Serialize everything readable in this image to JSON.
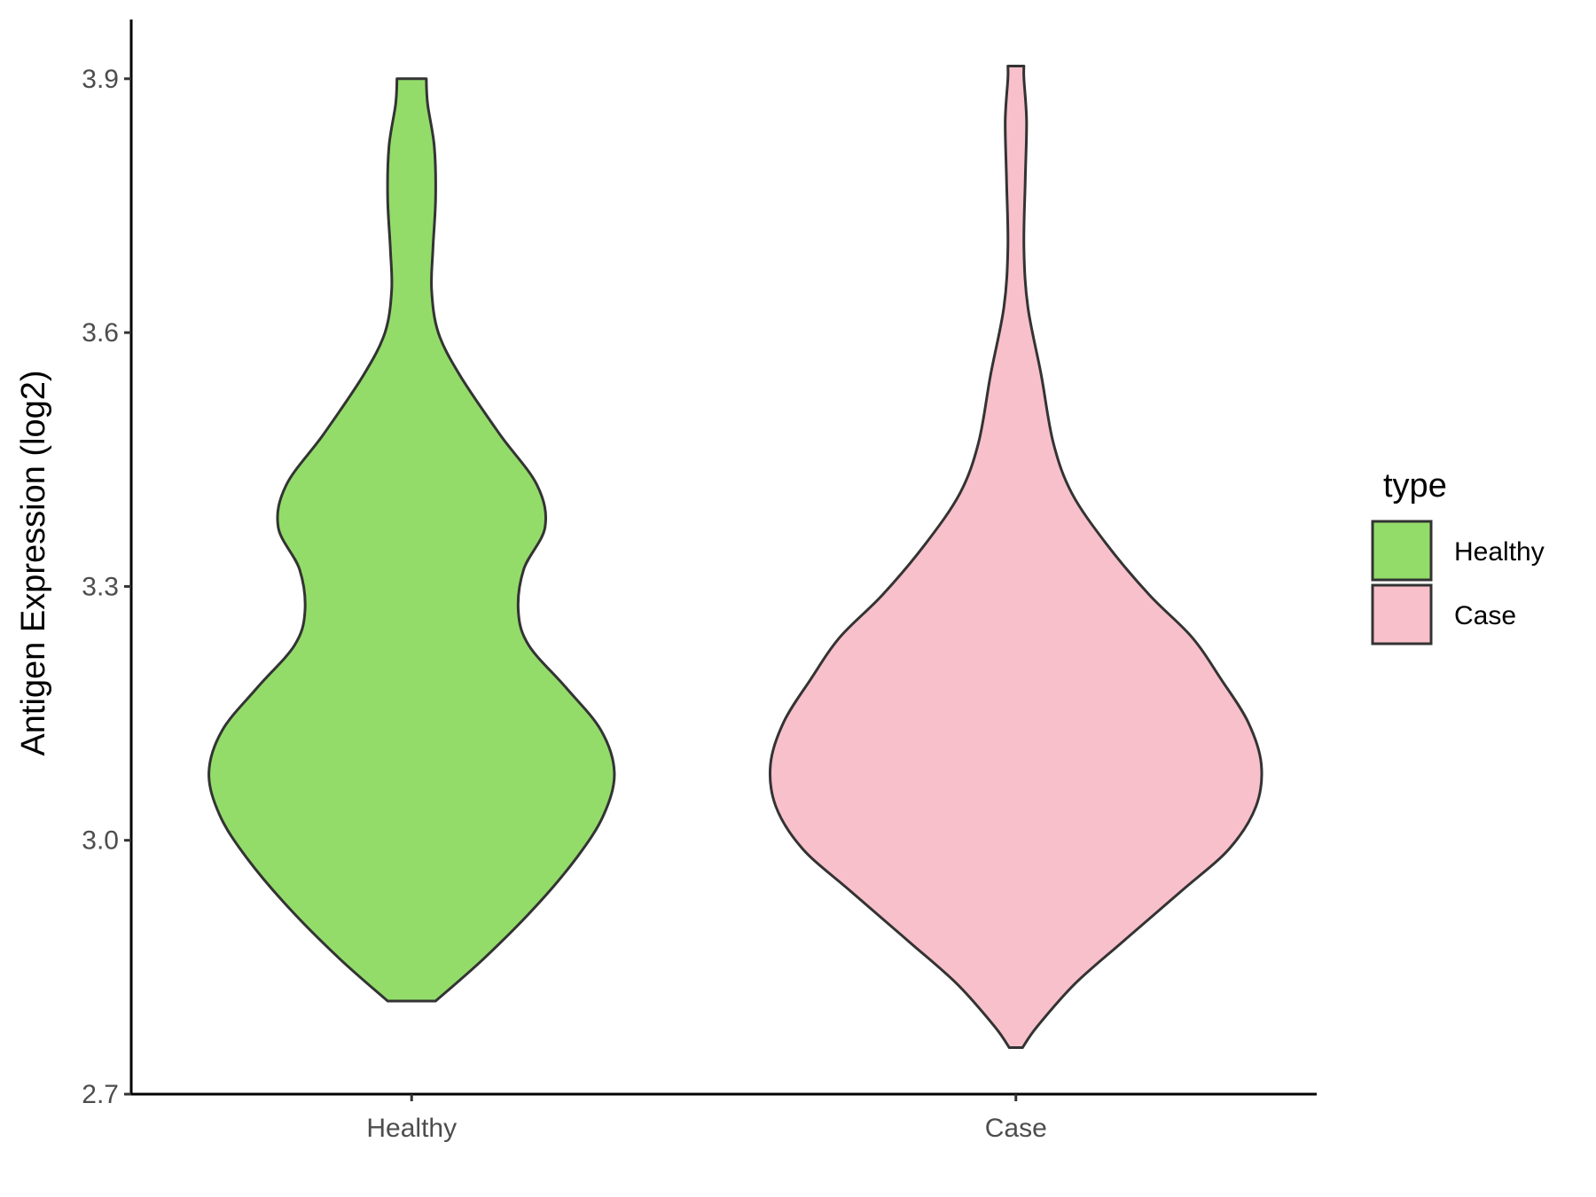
{
  "chart_data": {
    "type": "violin",
    "xlabel": "",
    "ylabel": "Antigen Expression (log2)",
    "ylim": [
      2.7,
      3.97
    ],
    "yticks": [
      "2.7",
      "3.0",
      "3.3",
      "3.6",
      "3.9"
    ],
    "categories": [
      "Healthy",
      "Case"
    ],
    "legend": {
      "title": "type",
      "position": "right",
      "entries": [
        "Healthy",
        "Case"
      ]
    },
    "grid": false,
    "series": [
      {
        "name": "Healthy",
        "color": "#93dc6a",
        "min": 2.81,
        "max": 3.9,
        "profile": [
          [
            2.81,
            0.09
          ],
          [
            2.86,
            0.27
          ],
          [
            2.92,
            0.46
          ],
          [
            2.98,
            0.62
          ],
          [
            3.03,
            0.72
          ],
          [
            3.08,
            0.76
          ],
          [
            3.13,
            0.71
          ],
          [
            3.18,
            0.58
          ],
          [
            3.23,
            0.44
          ],
          [
            3.27,
            0.4
          ],
          [
            3.32,
            0.42
          ],
          [
            3.37,
            0.5
          ],
          [
            3.42,
            0.47
          ],
          [
            3.48,
            0.33
          ],
          [
            3.55,
            0.18
          ],
          [
            3.6,
            0.1
          ],
          [
            3.65,
            0.075
          ],
          [
            3.7,
            0.08
          ],
          [
            3.76,
            0.09
          ],
          [
            3.82,
            0.085
          ],
          [
            3.87,
            0.06
          ],
          [
            3.9,
            0.055
          ]
        ]
      },
      {
        "name": "Case",
        "color": "#f8c0cb",
        "min": 2.755,
        "max": 3.915,
        "profile": [
          [
            2.755,
            0.025
          ],
          [
            2.78,
            0.08
          ],
          [
            2.83,
            0.22
          ],
          [
            2.88,
            0.4
          ],
          [
            2.94,
            0.62
          ],
          [
            2.99,
            0.8
          ],
          [
            3.04,
            0.9
          ],
          [
            3.09,
            0.92
          ],
          [
            3.14,
            0.87
          ],
          [
            3.19,
            0.77
          ],
          [
            3.24,
            0.66
          ],
          [
            3.29,
            0.5
          ],
          [
            3.35,
            0.34
          ],
          [
            3.41,
            0.21
          ],
          [
            3.47,
            0.14
          ],
          [
            3.55,
            0.095
          ],
          [
            3.63,
            0.045
          ],
          [
            3.7,
            0.03
          ],
          [
            3.78,
            0.035
          ],
          [
            3.85,
            0.04
          ],
          [
            3.9,
            0.03
          ],
          [
            3.915,
            0.03
          ]
        ]
      }
    ]
  }
}
